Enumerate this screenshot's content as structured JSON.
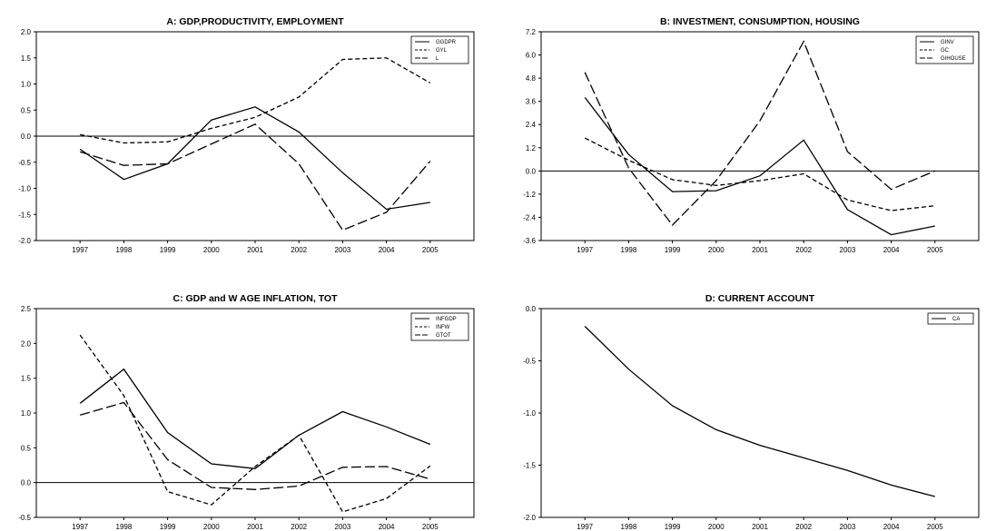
{
  "chart_data": [
    {
      "type": "line",
      "title": "A: GDP,PRODUCTIVITY, EMPLOYMENT",
      "x": [
        "1997",
        "1998",
        "1999",
        "2000",
        "2001",
        "2002",
        "2003",
        "2004",
        "2005"
      ],
      "ylim": [
        -2.0,
        2.0
      ],
      "yticks": [
        "2.0",
        "1.5",
        "1.0",
        "0.5",
        "0.0",
        "-0.5",
        "-1.0",
        "-1.5",
        "-2.0"
      ],
      "legend_position": "top-right",
      "series": [
        {
          "name": "GGDPR",
          "dash": "solid",
          "values": [
            -0.25,
            -0.83,
            -0.53,
            0.31,
            0.56,
            0.08,
            -0.7,
            -1.4,
            -1.27
          ]
        },
        {
          "name": "GYL",
          "dash": "short",
          "values": [
            0.03,
            -0.13,
            -0.11,
            0.15,
            0.36,
            0.75,
            1.47,
            1.5,
            1.02
          ]
        },
        {
          "name": "L",
          "dash": "long",
          "values": [
            -0.3,
            -0.56,
            -0.53,
            -0.15,
            0.23,
            -0.53,
            -1.8,
            -1.46,
            -0.48
          ]
        }
      ]
    },
    {
      "type": "line",
      "title": "B: INVESTMENT, CONSUMPTION, HOUSING",
      "x": [
        "1997",
        "1998",
        "1999",
        "2000",
        "2001",
        "2002",
        "2003",
        "2004",
        "2005"
      ],
      "ylim": [
        -3.6,
        7.2
      ],
      "yticks": [
        "7.2",
        "6.0",
        "4.8",
        "3.6",
        "2.4",
        "1.2",
        "0.0",
        "-1.2",
        "-2.4",
        "-3.6"
      ],
      "legend_position": "top-right",
      "series": [
        {
          "name": "GINV",
          "dash": "solid",
          "values": [
            3.8,
            0.85,
            -1.07,
            -1.02,
            -0.25,
            1.6,
            -2.0,
            -3.3,
            -2.85
          ]
        },
        {
          "name": "GC",
          "dash": "short",
          "values": [
            1.7,
            0.55,
            -0.45,
            -0.75,
            -0.5,
            -0.15,
            -1.5,
            -2.05,
            -1.8
          ]
        },
        {
          "name": "GIHOUSE",
          "dash": "long",
          "values": [
            5.1,
            0.15,
            -2.8,
            -0.5,
            2.6,
            6.7,
            1.0,
            -0.95,
            0.0
          ]
        }
      ]
    },
    {
      "type": "line",
      "title": "C: GDP and  W AGE INFLATION, TOT",
      "x": [
        "1997",
        "1998",
        "1999",
        "2000",
        "2001",
        "2002",
        "2003",
        "2004",
        "2005"
      ],
      "ylim": [
        -0.5,
        2.5
      ],
      "yticks": [
        "2.5",
        "2.0",
        "1.5",
        "1.0",
        "0.5",
        "0.0",
        "-0.5"
      ],
      "legend_position": "top-right",
      "series": [
        {
          "name": "INFGDP",
          "dash": "solid",
          "values": [
            1.14,
            1.63,
            0.72,
            0.27,
            0.2,
            0.68,
            1.02,
            0.8,
            0.55
          ]
        },
        {
          "name": "INFW",
          "dash": "short",
          "values": [
            2.12,
            1.25,
            -0.13,
            -0.32,
            0.23,
            0.68,
            -0.42,
            -0.23,
            0.24
          ]
        },
        {
          "name": "GTOT",
          "dash": "long",
          "values": [
            0.97,
            1.15,
            0.33,
            -0.07,
            -0.1,
            -0.05,
            0.22,
            0.23,
            0.05
          ]
        }
      ]
    },
    {
      "type": "line",
      "title": "D: CURRENT ACCOUNT",
      "x": [
        "1997",
        "1998",
        "1999",
        "2000",
        "2001",
        "2002",
        "2003",
        "2004",
        "2005"
      ],
      "ylim": [
        -2.0,
        0.0
      ],
      "yticks": [
        "0.0",
        "-0.5",
        "-1.0",
        "-1.5",
        "-2.0"
      ],
      "legend_position": "top-right",
      "series": [
        {
          "name": "CA",
          "dash": "solid",
          "values": [
            -0.17,
            -0.58,
            -0.93,
            -1.16,
            -1.31,
            -1.43,
            -1.55,
            -1.69,
            -1.8
          ]
        }
      ]
    }
  ]
}
